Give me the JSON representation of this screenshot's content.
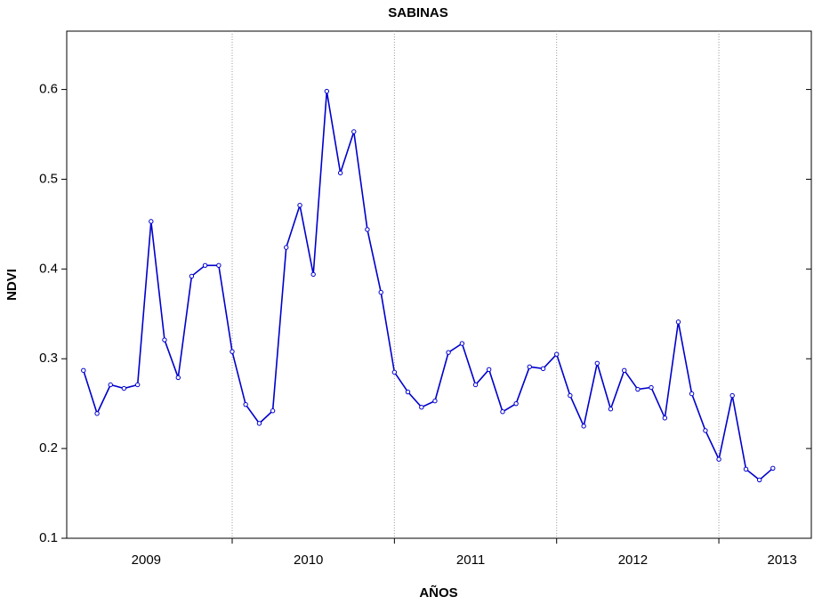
{
  "chart_data": {
    "type": "line",
    "title": "SABINAS",
    "x_label": "AÑOS",
    "y_label": "NDVI",
    "x": [
      2009.083,
      2009.167,
      2009.25,
      2009.333,
      2009.417,
      2009.5,
      2009.583,
      2009.667,
      2009.75,
      2009.833,
      2009.917,
      2010.0,
      2010.083,
      2010.167,
      2010.25,
      2010.333,
      2010.417,
      2010.5,
      2010.583,
      2010.667,
      2010.75,
      2010.833,
      2010.917,
      2011.0,
      2011.083,
      2011.167,
      2011.25,
      2011.333,
      2011.417,
      2011.5,
      2011.583,
      2011.667,
      2011.75,
      2011.833,
      2011.917,
      2012.0,
      2012.083,
      2012.167,
      2012.25,
      2012.333,
      2012.417,
      2012.5,
      2012.583,
      2012.667,
      2012.75,
      2012.833,
      2012.917,
      2013.0,
      2013.083,
      2013.167,
      2013.25,
      2013.333
    ],
    "series": [
      {
        "name": "NDVI",
        "color": "#0000cc",
        "values": [
          0.287,
          0.239,
          0.271,
          0.267,
          0.271,
          0.453,
          0.321,
          0.279,
          0.392,
          0.404,
          0.404,
          0.308,
          0.249,
          0.228,
          0.242,
          0.424,
          0.471,
          0.394,
          0.598,
          0.507,
          0.553,
          0.444,
          0.374,
          0.285,
          0.263,
          0.246,
          0.253,
          0.307,
          0.317,
          0.271,
          0.288,
          0.241,
          0.25,
          0.291,
          0.289,
          0.305,
          0.259,
          0.225,
          0.295,
          0.244,
          0.287,
          0.266,
          0.268,
          0.234,
          0.341,
          0.261,
          0.22,
          0.188,
          0.259,
          0.177,
          0.165,
          0.178
        ]
      }
    ],
    "xlim": [
      2008.98,
      2013.57
    ],
    "xticks": [
      {
        "value": 2009.47,
        "label": "2009"
      },
      {
        "value": 2010.47,
        "label": "2010"
      },
      {
        "value": 2011.47,
        "label": "2011"
      },
      {
        "value": 2012.47,
        "label": "2012"
      },
      {
        "value": 2013.39,
        "label": "2013"
      }
    ],
    "xgrid": [
      2010,
      2011,
      2012,
      2013
    ],
    "ylim": [
      0.1,
      0.665
    ],
    "yticks": [
      0.1,
      0.2,
      0.3,
      0.4,
      0.5,
      0.6
    ]
  }
}
